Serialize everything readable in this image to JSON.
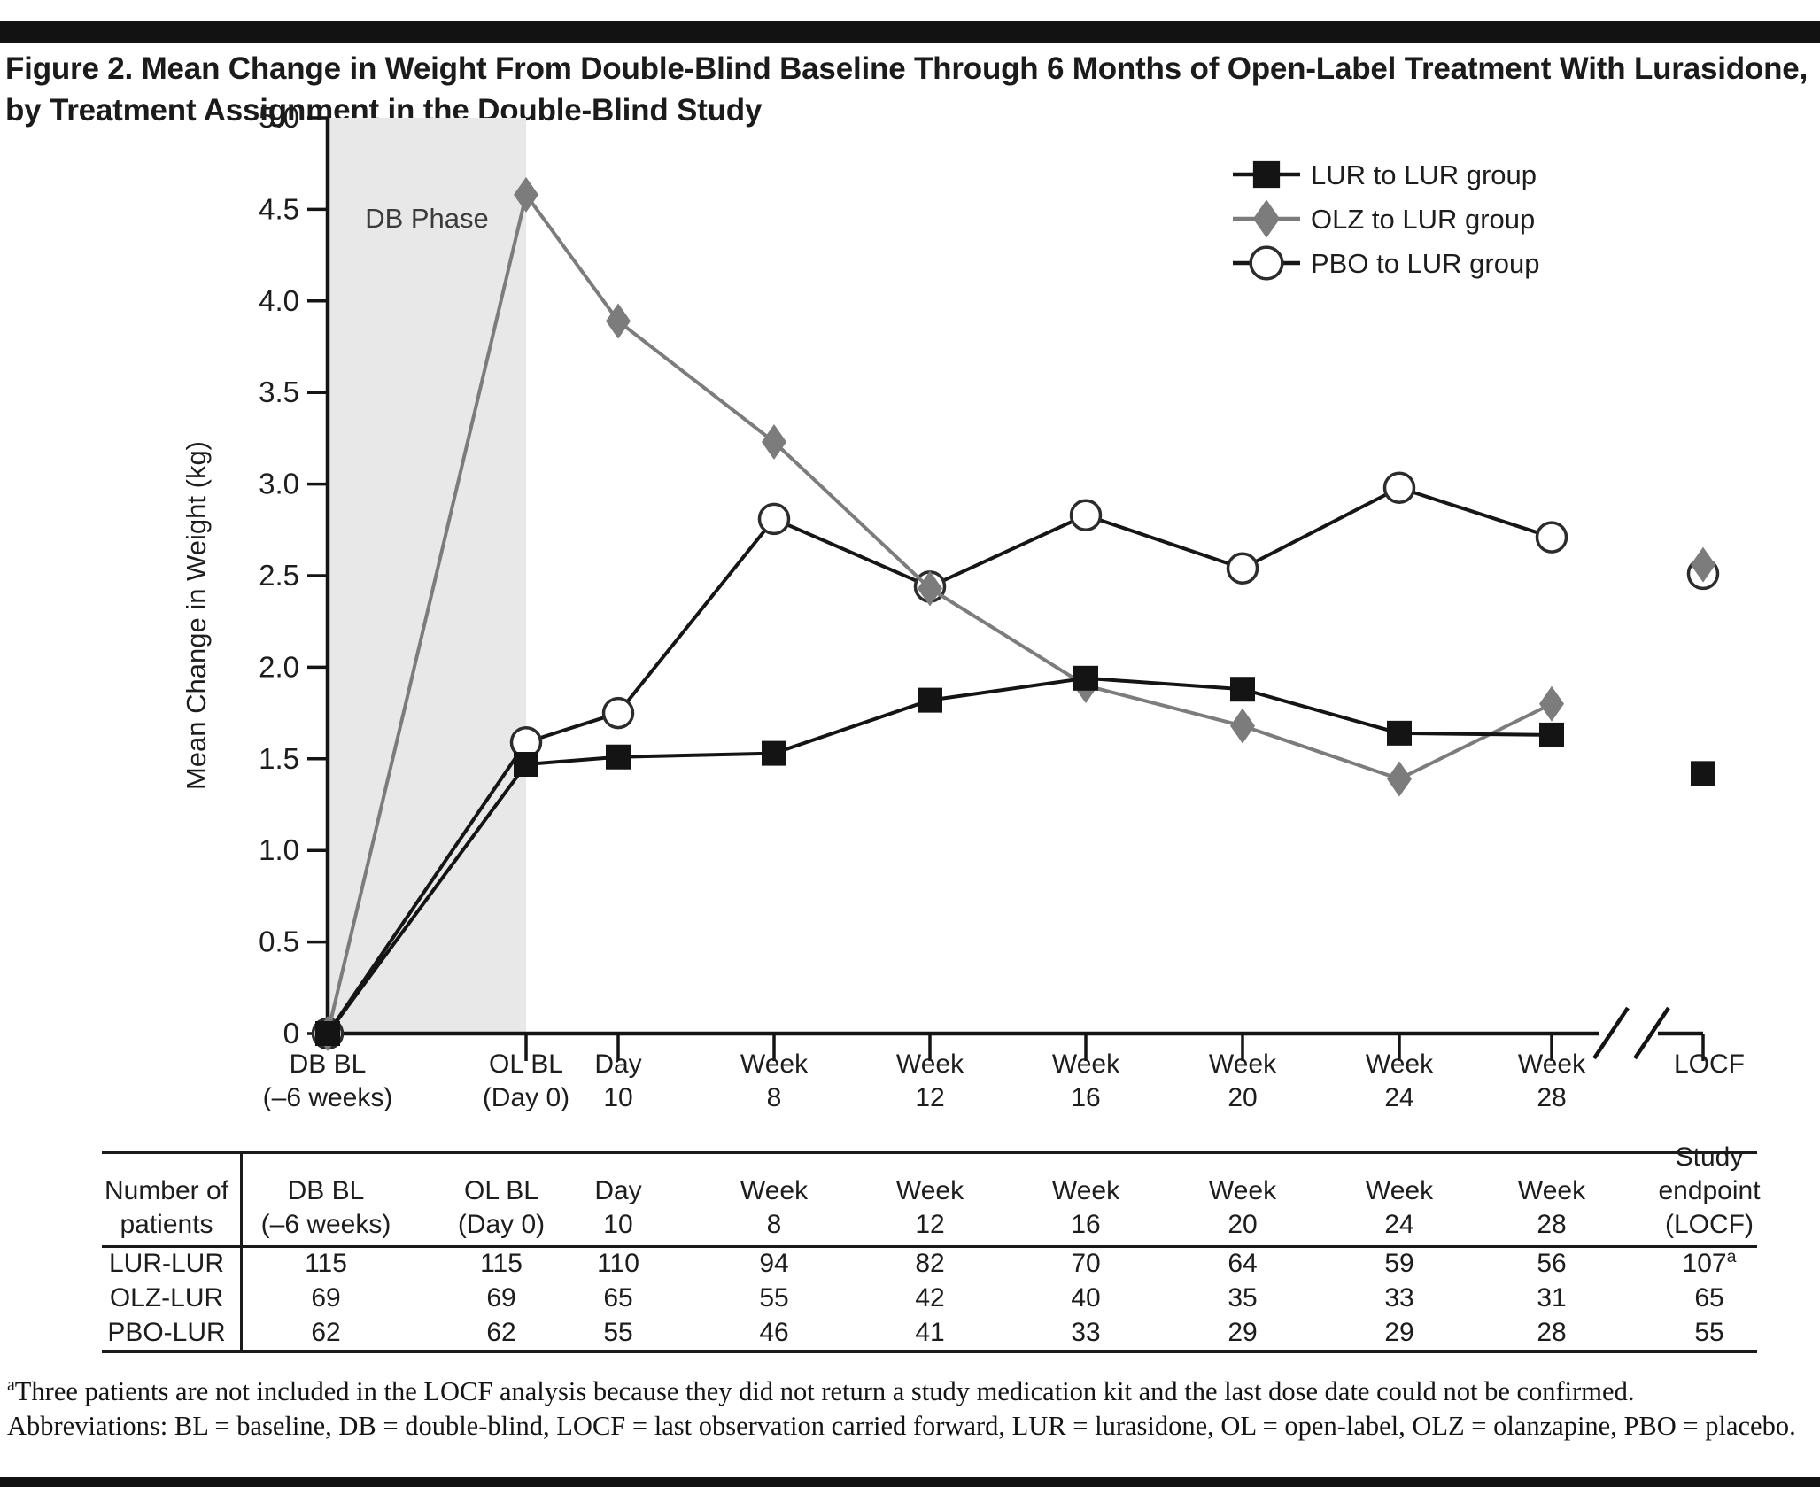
{
  "figure": {
    "title": "Figure 2. Mean Change in Weight From Double-Blind Baseline Through 6 Months of Open-Label Treatment With Lurasidone, by Treatment Assignment in the Double-Blind Study"
  },
  "chart_data": {
    "type": "line",
    "title": "",
    "xlabel": "",
    "ylabel": "Mean Change in Weight (kg)",
    "ylim": [
      0,
      5.0
    ],
    "ytick_labels": [
      "0",
      "0.5",
      "1.0",
      "1.5",
      "2.0",
      "2.5",
      "3.0",
      "3.5",
      "4.0",
      "4.5",
      "5.0"
    ],
    "grid": false,
    "legend_position": "top-right",
    "x_axis_break_before_last": true,
    "db_phase_label": "DB Phase",
    "locf_label": "LOCF",
    "categories": [
      [
        "DB BL",
        "(–6 weeks)"
      ],
      [
        "OL BL",
        "(Day 0)"
      ],
      [
        "Day",
        "10"
      ],
      [
        "Week",
        "8"
      ],
      [
        "Week",
        "12"
      ],
      [
        "Week",
        "16"
      ],
      [
        "Week",
        "20"
      ],
      [
        "Week",
        "24"
      ],
      [
        "Week",
        "28"
      ]
    ],
    "series": [
      {
        "name": "LUR to LUR group",
        "marker": "square",
        "color": "#141414",
        "values": [
          0,
          1.47,
          1.51,
          1.53,
          1.82,
          1.94,
          1.88,
          1.64,
          1.63
        ],
        "locf": 1.42
      },
      {
        "name": "OLZ to LUR group",
        "marker": "diamond",
        "color": "#7c7c7c",
        "values": [
          0,
          4.58,
          3.89,
          3.23,
          2.43,
          1.9,
          1.68,
          1.39,
          1.8
        ],
        "locf": 2.56
      },
      {
        "name": "PBO to LUR group",
        "marker": "circle",
        "color": "#1c1c1c",
        "values": [
          0,
          1.59,
          1.75,
          2.81,
          2.44,
          2.83,
          2.54,
          2.98,
          2.71
        ],
        "locf": 2.51
      }
    ],
    "colors": {
      "db_phase_fill": "#e8e8e8",
      "axis": "#141414"
    }
  },
  "table": {
    "row_header": [
      "Number of",
      "patients"
    ],
    "col_headers": [
      [
        "DB BL",
        "(–6 weeks)"
      ],
      [
        "OL BL",
        "(Day 0)"
      ],
      [
        "Day",
        "10"
      ],
      [
        "Week",
        "8"
      ],
      [
        "Week",
        "12"
      ],
      [
        "Week",
        "16"
      ],
      [
        "Week",
        "20"
      ],
      [
        "Week",
        "24"
      ],
      [
        "Week",
        "28"
      ],
      [
        "Study",
        "endpoint",
        "(LOCF)"
      ]
    ],
    "rows": [
      {
        "label": "LUR-LUR",
        "values": [
          "115",
          "115",
          "110",
          "94",
          "82",
          "70",
          "64",
          "59",
          "56",
          "107"
        ],
        "last_value_sup": "a"
      },
      {
        "label": "OLZ-LUR",
        "values": [
          "69",
          "69",
          "65",
          "55",
          "42",
          "40",
          "35",
          "33",
          "31",
          "65"
        ],
        "last_value_sup": ""
      },
      {
        "label": "PBO-LUR",
        "values": [
          "62",
          "62",
          "55",
          "46",
          "41",
          "33",
          "29",
          "29",
          "28",
          "55"
        ],
        "last_value_sup": ""
      }
    ]
  },
  "footnotes": {
    "marker": "a",
    "note": "Three patients are not included in the LOCF analysis because they did not return a study medication kit and the last dose date could not be confirmed.",
    "abbreviations": "Abbreviations: BL = baseline, DB = double-blind, LOCF = last observation carried forward, LUR = lurasidone, OL = open-label, OLZ = olanzapine, PBO = placebo."
  }
}
